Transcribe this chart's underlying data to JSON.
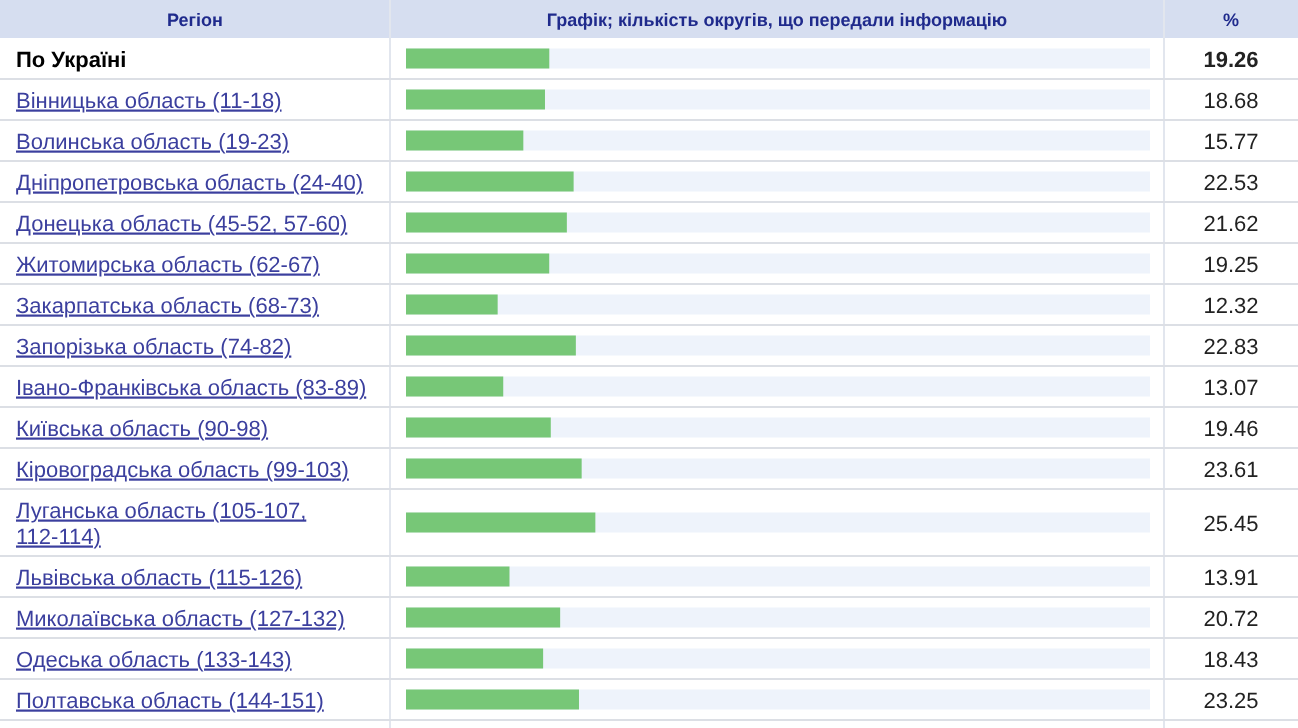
{
  "chart_data": {
    "type": "bar",
    "orientation": "horizontal",
    "title": "Графік; кількість округів, що передали інформацію",
    "ylabel": "Регіон",
    "xlabel": "%",
    "categories": [
      "По Україні",
      "Вінницька область (11-18)",
      "Волинська область (19-23)",
      "Дніпропетровська область (24-40)",
      "Донецька область (45-52, 57-60)",
      "Житомирська область (62-67)",
      "Закарпатська область (68-73)",
      "Запорізька область (74-82)",
      "Івано-Франківська область (83-89)",
      "Київська область (90-98)",
      "Кіровоградська область (99-103)",
      "Луганська область (105-107, 112-114)",
      "Львівська область (115-126)",
      "Миколаївська область (127-132)",
      "Одеська область (133-143)",
      "Полтавська область (144-151)"
    ],
    "values": [
      19.26,
      18.68,
      15.77,
      22.53,
      21.62,
      19.25,
      12.32,
      22.83,
      13.07,
      19.46,
      23.61,
      25.45,
      13.91,
      20.72,
      18.43,
      23.25
    ],
    "value_labels": [
      "19.26",
      "18.68",
      "15.77",
      "22.53",
      "21.62",
      "19.25",
      "12.32",
      "22.83",
      "13.07",
      "19.46",
      "23.61",
      "25.45",
      "13.91",
      "20.72",
      "18.43",
      "23.25"
    ],
    "color": "#77c777",
    "xlim": [
      0,
      100
    ],
    "tick_labels": "y"
  }
}
